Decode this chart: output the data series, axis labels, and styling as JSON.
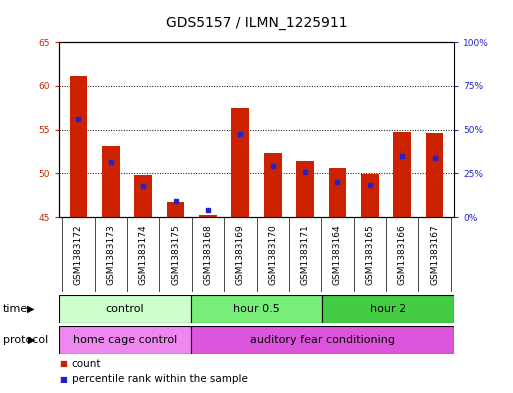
{
  "title": "GDS5157 / ILMN_1225911",
  "samples": [
    "GSM1383172",
    "GSM1383173",
    "GSM1383174",
    "GSM1383175",
    "GSM1383168",
    "GSM1383169",
    "GSM1383170",
    "GSM1383171",
    "GSM1383164",
    "GSM1383165",
    "GSM1383166",
    "GSM1383167"
  ],
  "count_values": [
    61.1,
    53.1,
    49.8,
    46.7,
    45.2,
    57.5,
    52.3,
    51.4,
    50.6,
    49.9,
    54.7,
    54.6
  ],
  "percentile_raw": [
    56.2,
    51.3,
    48.5,
    46.8,
    45.8,
    54.5,
    50.8,
    50.1,
    49.0,
    48.7,
    52.0,
    51.8
  ],
  "ylim_left": [
    45,
    65
  ],
  "ylim_right": [
    0,
    100
  ],
  "yticks_left": [
    45,
    50,
    55,
    60,
    65
  ],
  "yticks_right": [
    0,
    25,
    50,
    75,
    100
  ],
  "ytick_labels_right": [
    "0%",
    "25%",
    "50%",
    "75%",
    "100%"
  ],
  "bar_bottom": 45.0,
  "bar_color": "#cc2200",
  "percentile_color": "#2222cc",
  "time_groups": [
    {
      "label": "control",
      "start": 0,
      "end": 4,
      "color": "#ccffcc"
    },
    {
      "label": "hour 0.5",
      "start": 4,
      "end": 8,
      "color": "#77ee77"
    },
    {
      "label": "hour 2",
      "start": 8,
      "end": 12,
      "color": "#44cc44"
    }
  ],
  "protocol_groups": [
    {
      "label": "home cage control",
      "start": 0,
      "end": 4,
      "color": "#ee88ee"
    },
    {
      "label": "auditory fear conditioning",
      "start": 4,
      "end": 12,
      "color": "#dd55dd"
    }
  ],
  "time_label": "time",
  "protocol_label": "protocol",
  "title_fontsize": 10,
  "tick_fontsize": 6.5,
  "bar_width": 0.55,
  "label_fontsize": 7.5,
  "group_fontsize": 8
}
